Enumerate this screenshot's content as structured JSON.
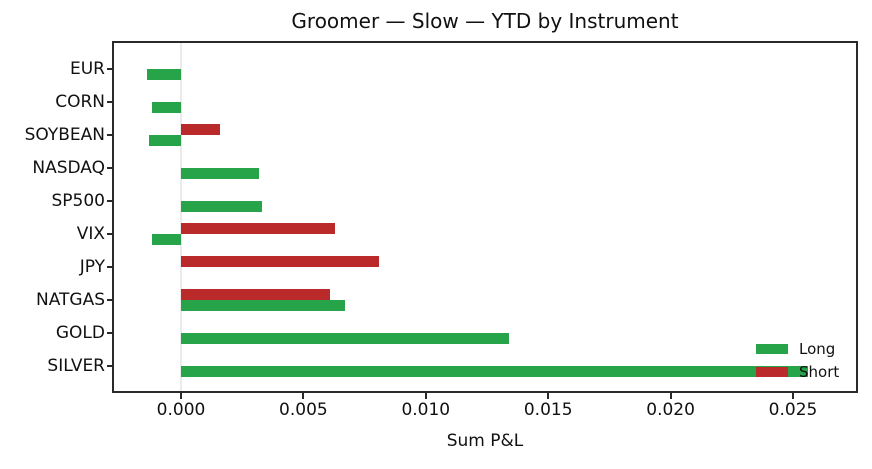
{
  "title": "Groomer — Slow — YTD by Instrument",
  "legend": {
    "position": "lower right",
    "entries": [
      {
        "label": "Long",
        "color": "#27a44a"
      },
      {
        "label": "Short",
        "color": "#bb2a2a"
      }
    ]
  },
  "colors": {
    "long": "#27a44a",
    "short": "#bb2a2a",
    "spine": "#2a2a2a",
    "zero_line": "#ebebeb",
    "background": "#ffffff",
    "text": "#111111"
  },
  "chart_data": {
    "type": "bar",
    "orientation": "horizontal",
    "title": "Groomer — Slow — YTD by Instrument",
    "xlabel": "Sum P&L",
    "ylabel": "",
    "categories": [
      "EUR",
      "CORN",
      "SOYBEAN",
      "NASDAQ",
      "SP500",
      "VIX",
      "JPY",
      "NATGAS",
      "GOLD",
      "SILVER"
    ],
    "series": [
      {
        "name": "Long",
        "color": "#27a44a",
        "values": [
          -0.0014,
          -0.0012,
          -0.0013,
          0.0032,
          0.0033,
          -0.0012,
          null,
          0.0067,
          0.0134,
          0.0256
        ]
      },
      {
        "name": "Short",
        "color": "#bb2a2a",
        "values": [
          null,
          null,
          0.0016,
          null,
          null,
          0.0063,
          0.0081,
          0.0061,
          null,
          null
        ]
      }
    ],
    "xlim": [
      -0.0028,
      0.0277
    ],
    "xticks": [
      0.0,
      0.005,
      0.01,
      0.015,
      0.02,
      0.025
    ],
    "xtick_labels": [
      "0.000",
      "0.005",
      "0.010",
      "0.015",
      "0.020",
      "0.025"
    ],
    "grid": false,
    "zero_line": true,
    "legend_position": "lower right"
  }
}
